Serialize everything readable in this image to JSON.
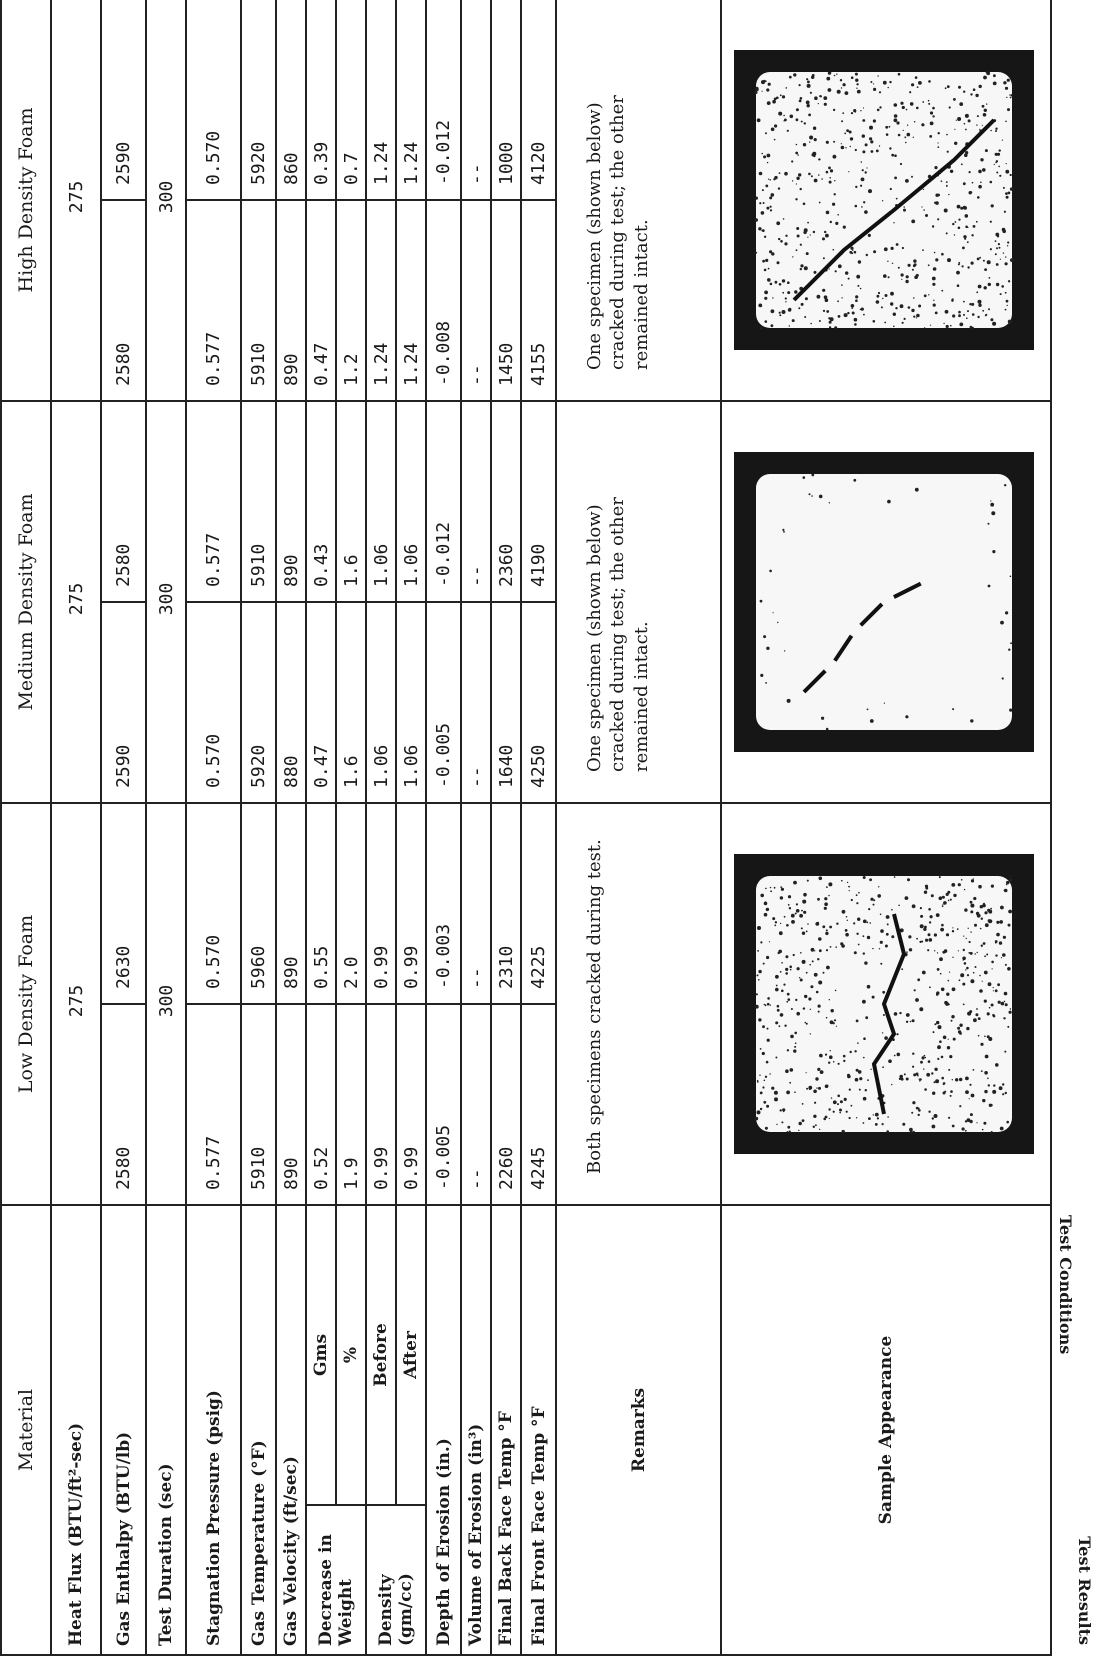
{
  "header": {
    "material": "Material",
    "columns": [
      "Low Density Foam",
      "Medium Density Foam",
      "High Density Foam"
    ]
  },
  "rows": [
    {
      "label": "Heat Flux (BTU/ft²-sec)",
      "values": [
        "275",
        "275",
        "275"
      ]
    },
    {
      "label": "Gas Enthalpy (BTU/lb)",
      "values": [
        "2580",
        "2630",
        "2590",
        "2580",
        "2580",
        "2590"
      ]
    },
    {
      "label": "Test Duration (sec)",
      "values": [
        "300",
        "300",
        "300"
      ]
    },
    {
      "label": "Stagnation Pressure (psig)",
      "values": [
        "0.577",
        "0.570",
        "0.570",
        "0.577",
        "0.577",
        "0.570"
      ]
    },
    {
      "label": "Gas Temperature (°F)",
      "values": [
        "5910",
        "5960",
        "5920",
        "5910",
        "5910",
        "5920"
      ]
    },
    {
      "label": "Gas Velocity (ft/sec)",
      "values": [
        "890",
        "890",
        "880",
        "890",
        "890",
        "860"
      ]
    },
    {
      "label": "Decrease in Weight",
      "subrows": [
        {
          "label": "Gms",
          "values": [
            "0.52",
            "0.55",
            "0.47",
            "0.43",
            "0.47",
            "0.39"
          ]
        },
        {
          "label": "%",
          "values": [
            "1.9",
            "2.0",
            "1.6",
            "1.6",
            "1.2",
            "0.7"
          ]
        }
      ]
    },
    {
      "label": "Density (gm/cc)",
      "subrows": [
        {
          "label": "Before",
          "values": [
            "0.99",
            "0.99",
            "1.06",
            "1.06",
            "1.24",
            "1.24"
          ]
        },
        {
          "label": "After",
          "values": [
            "0.99",
            "0.99",
            "1.06",
            "1.06",
            "1.24",
            "1.24"
          ]
        }
      ]
    },
    {
      "label": "Depth of Erosion (in.)",
      "values": [
        "-0.005",
        "-0.003",
        "-0.005",
        "-0.012",
        "-0.008",
        "-0.012"
      ]
    },
    {
      "label": "Volume of Erosion (in³)",
      "values": [
        "--",
        "--",
        "--",
        "--",
        "--",
        "--"
      ]
    },
    {
      "label": "Final Back Face Temp °F",
      "values": [
        "2260",
        "2310",
        "1640",
        "2360",
        "1450",
        "1000"
      ]
    },
    {
      "label": "Final Front Face Temp °F",
      "values": [
        "4245",
        "4225",
        "4250",
        "4190",
        "4155",
        "4120"
      ]
    }
  ],
  "remarks": {
    "label": "Remarks",
    "values": [
      "Both specimens cracked during test.",
      "One specimen (shown below) cracked during test; the other remained intact.",
      "One specimen (shown below) cracked during test; the other remained intact."
    ]
  },
  "appearance": {
    "label": "Sample Appearance"
  },
  "side_labels": [
    "Test Conditions",
    "Test Results"
  ]
}
